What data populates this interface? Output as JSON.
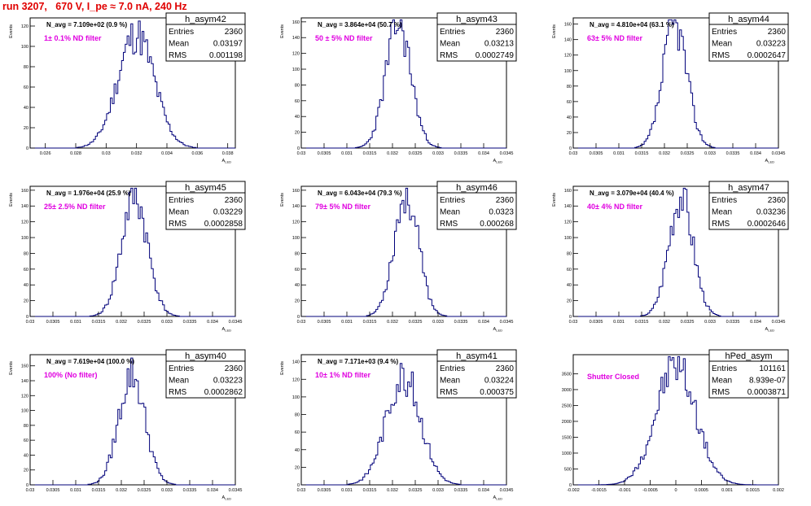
{
  "canvas": {
    "title": "run 3207,   670 V, I_pe ≈ 7.0 nA, 240 Hz"
  },
  "colors": {
    "histogram": "#00007a",
    "annotation": "#e000e0",
    "title": "#e00000",
    "frame": "#000000"
  },
  "chart_data": [
    {
      "type": "bar",
      "name": "h_asym42",
      "nav": "N_avg = 7.109e+02 (0.9 %)",
      "filter": "1± 0.1% ND filter",
      "stats": {
        "entries": "2360",
        "mean": "0.03197",
        "rms": "0.001198"
      },
      "xlabel": "A_LED",
      "ylabel": "Events",
      "xlim": [
        0.025,
        0.0385
      ],
      "ylim": [
        0,
        128
      ],
      "xticks": [
        0.026,
        0.028,
        0.03,
        0.032,
        0.034,
        0.036,
        0.038
      ],
      "xtick_labels": [
        "0.026",
        "0.028",
        "0.03",
        "0.032",
        "0.034",
        "0.036",
        "0.038"
      ],
      "yticks": [
        0,
        20,
        40,
        60,
        80,
        100,
        120
      ],
      "mean": 0.03197,
      "rms": 0.001198,
      "peak": 112,
      "seed": 11
    },
    {
      "type": "bar",
      "name": "h_asym43",
      "nav": "N_avg = 3.864e+04 (50.7 %)",
      "filter": "50 ± 5% ND filter",
      "stats": {
        "entries": "2360",
        "mean": "0.03213",
        "rms": "0.0002749"
      },
      "xlabel": "A_LED",
      "ylabel": "Events",
      "xlim": [
        0.03,
        0.0345
      ],
      "ylim": [
        0,
        165
      ],
      "xticks": [
        0.03,
        0.0305,
        0.031,
        0.0315,
        0.032,
        0.0325,
        0.033,
        0.0335,
        0.034,
        0.0345
      ],
      "xtick_labels": [
        "0.03",
        "0.0305",
        "0.031",
        "0.0315",
        "0.032",
        "0.0325",
        "0.033",
        "0.0335",
        "0.034",
        "0.0345"
      ],
      "yticks": [
        0,
        20,
        40,
        60,
        80,
        100,
        120,
        140,
        160
      ],
      "mean": 0.03213,
      "rms": 0.0002749,
      "peak": 158,
      "seed": 23
    },
    {
      "type": "bar",
      "name": "h_asym44",
      "nav": "N_avg = 4.810e+04 (63.1 %)",
      "filter": "63± 5% ND filter",
      "stats": {
        "entries": "2360",
        "mean": "0.03223",
        "rms": "0.0002647"
      },
      "xlabel": "A_LED",
      "ylabel": "Events",
      "xlim": [
        0.03,
        0.0345
      ],
      "ylim": [
        0,
        168
      ],
      "xticks": [
        0.03,
        0.0305,
        0.031,
        0.0315,
        0.032,
        0.0325,
        0.033,
        0.0335,
        0.034,
        0.0345
      ],
      "xtick_labels": [
        "0.03",
        "0.0305",
        "0.031",
        "0.0315",
        "0.032",
        "0.0325",
        "0.033",
        "0.0335",
        "0.034",
        "0.0345"
      ],
      "yticks": [
        0,
        20,
        40,
        60,
        80,
        100,
        120,
        140,
        160
      ],
      "mean": 0.03223,
      "rms": 0.0002647,
      "peak": 160,
      "seed": 37
    },
    {
      "type": "bar",
      "name": "h_asym45",
      "nav": "N_avg = 1.976e+04 (25.9 %)",
      "filter": "25± 2.5% ND filter",
      "stats": {
        "entries": "2360",
        "mean": "0.03229",
        "rms": "0.0002858"
      },
      "xlabel": "A_LED",
      "ylabel": "Events",
      "xlim": [
        0.03,
        0.0345
      ],
      "ylim": [
        0,
        165
      ],
      "xticks": [
        0.03,
        0.0305,
        0.031,
        0.0315,
        0.032,
        0.0325,
        0.033,
        0.0335,
        0.034,
        0.0345
      ],
      "xtick_labels": [
        "0.03",
        "0.0305",
        "0.031",
        "0.0315",
        "0.032",
        "0.0325",
        "0.033",
        "0.0335",
        "0.034",
        "0.0345"
      ],
      "yticks": [
        0,
        20,
        40,
        60,
        80,
        100,
        120,
        140,
        160
      ],
      "mean": 0.03229,
      "rms": 0.0002858,
      "peak": 152,
      "seed": 41
    },
    {
      "type": "bar",
      "name": "h_asym46",
      "nav": "N_avg = 6.043e+04 (79.3 %)",
      "filter": "79± 5% ND filter",
      "stats": {
        "entries": "2360",
        "mean": "0.0323",
        "rms": "0.000268"
      },
      "xlabel": "A_LED",
      "ylabel": "Events",
      "xlim": [
        0.03,
        0.0345
      ],
      "ylim": [
        0,
        165
      ],
      "xticks": [
        0.03,
        0.0305,
        0.031,
        0.0315,
        0.032,
        0.0325,
        0.033,
        0.0335,
        0.034,
        0.0345
      ],
      "xtick_labels": [
        "0.03",
        "0.0305",
        "0.031",
        "0.0315",
        "0.032",
        "0.0325",
        "0.033",
        "0.0335",
        "0.034",
        "0.0345"
      ],
      "yticks": [
        0,
        20,
        40,
        60,
        80,
        100,
        120,
        140,
        160
      ],
      "mean": 0.0323,
      "rms": 0.000268,
      "peak": 155,
      "seed": 53
    },
    {
      "type": "bar",
      "name": "h_asym47",
      "nav": "N_avg = 3.079e+04 (40.4 %)",
      "filter": "40± 4% ND filter",
      "stats": {
        "entries": "2360",
        "mean": "0.03236",
        "rms": "0.0002646"
      },
      "xlabel": "A_LED",
      "ylabel": "Events",
      "xlim": [
        0.03,
        0.0345
      ],
      "ylim": [
        0,
        165
      ],
      "xticks": [
        0.03,
        0.0305,
        0.031,
        0.0315,
        0.032,
        0.0325,
        0.033,
        0.0335,
        0.034,
        0.0345
      ],
      "xtick_labels": [
        "0.03",
        "0.0305",
        "0.031",
        "0.0315",
        "0.032",
        "0.0325",
        "0.033",
        "0.0335",
        "0.034",
        "0.0345"
      ],
      "yticks": [
        0,
        20,
        40,
        60,
        80,
        100,
        120,
        140,
        160
      ],
      "mean": 0.03236,
      "rms": 0.0002646,
      "peak": 155,
      "seed": 67
    },
    {
      "type": "bar",
      "name": "h_asym40",
      "nav": "N_avg = 7.619e+04 (100.0 %)",
      "filter": "100% (No filter)",
      "stats": {
        "entries": "2360",
        "mean": "0.03223",
        "rms": "0.0002862"
      },
      "xlabel": "A_LED",
      "ylabel": "Events",
      "xlim": [
        0.03,
        0.0345
      ],
      "ylim": [
        0,
        175
      ],
      "xticks": [
        0.03,
        0.0305,
        0.031,
        0.0315,
        0.032,
        0.0325,
        0.033,
        0.0335,
        0.034,
        0.0345
      ],
      "xtick_labels": [
        "0.03",
        "0.0305",
        "0.031",
        "0.0315",
        "0.032",
        "0.0325",
        "0.033",
        "0.0335",
        "0.034",
        "0.0345"
      ],
      "yticks": [
        0,
        20,
        40,
        60,
        80,
        100,
        120,
        140,
        160
      ],
      "mean": 0.03223,
      "rms": 0.0002862,
      "peak": 150,
      "seed": 79
    },
    {
      "type": "bar",
      "name": "h_asym41",
      "nav": "N_avg = 7.171e+03 (9.4 %)",
      "filter": "10± 1% ND filter",
      "stats": {
        "entries": "2360",
        "mean": "0.03224",
        "rms": "0.000375"
      },
      "xlabel": "A_LED",
      "ylabel": "Events",
      "xlim": [
        0.03,
        0.0345
      ],
      "ylim": [
        0,
        148
      ],
      "xticks": [
        0.03,
        0.0305,
        0.031,
        0.0315,
        0.032,
        0.0325,
        0.033,
        0.0335,
        0.034,
        0.0345
      ],
      "xtick_labels": [
        "0.03",
        "0.0305",
        "0.031",
        "0.0315",
        "0.032",
        "0.0325",
        "0.033",
        "0.0335",
        "0.034",
        "0.0345"
      ],
      "yticks": [
        0,
        20,
        40,
        60,
        80,
        100,
        120,
        140
      ],
      "mean": 0.03224,
      "rms": 0.000375,
      "peak": 125,
      "seed": 83
    },
    {
      "type": "bar",
      "name": "hPed_asym",
      "nav": "",
      "filter": "Shutter Closed",
      "stats": {
        "entries": "101161",
        "mean": "8.939e-07",
        "rms": "0.0003871"
      },
      "xlabel": "",
      "ylabel": "",
      "xlim": [
        -0.002,
        0.002
      ],
      "ylim": [
        0,
        4100
      ],
      "xticks": [
        -0.002,
        -0.0015,
        -0.001,
        -0.0005,
        0,
        0.0005,
        0.001,
        0.0015,
        0.002
      ],
      "xtick_labels": [
        "-0.002",
        "-0.0015",
        "-0.001",
        "-0.0005",
        "0",
        "0.0005",
        "0.001",
        "0.0015",
        "0.002"
      ],
      "yticks": [
        0,
        500,
        1000,
        1500,
        2000,
        2500,
        3000,
        3500
      ],
      "mean": 9e-07,
      "rms": 0.0003871,
      "peak": 3780,
      "seed": 97
    }
  ]
}
